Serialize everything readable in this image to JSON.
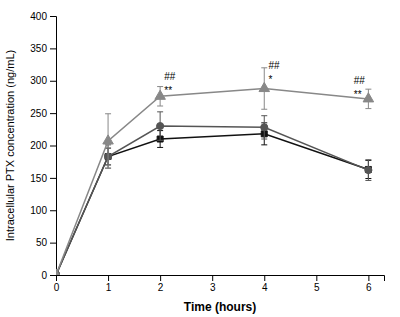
{
  "chart_data": {
    "type": "line",
    "x": [
      0,
      1,
      2,
      4,
      6
    ],
    "series": [
      {
        "color": "#111111",
        "marker": "square",
        "values": [
          0,
          183,
          210,
          218,
          163
        ],
        "errors": [
          0,
          13,
          13,
          17,
          14
        ]
      },
      {
        "color": "#555555",
        "marker": "circle",
        "values": [
          0,
          183,
          230,
          228,
          162
        ],
        "errors": [
          0,
          18,
          22,
          18,
          16
        ]
      },
      {
        "color": "#888888",
        "marker": "triangle",
        "values": [
          0,
          207,
          276,
          288,
          272
        ],
        "errors": [
          0,
          42,
          15,
          32,
          15
        ]
      }
    ],
    "xlabel": "Time (hours)",
    "ylabel": "Intracellular PTX concentration (ng/mL)",
    "xlim": [
      0,
      6.3
    ],
    "ylim": [
      0,
      400
    ],
    "xticks": [
      0,
      1,
      2,
      3,
      4,
      5,
      6
    ],
    "yticks": [
      0,
      50,
      100,
      150,
      200,
      250,
      300,
      350,
      400
    ],
    "grid": false,
    "annotations": [
      {
        "x": 2.08,
        "y": 293,
        "texts": [
          "##",
          "**"
        ]
      },
      {
        "x": 4.08,
        "y": 310,
        "texts": [
          "##",
          "*"
        ]
      },
      {
        "x": 5.72,
        "y": 288,
        "texts": [
          "##",
          "**"
        ]
      }
    ]
  }
}
